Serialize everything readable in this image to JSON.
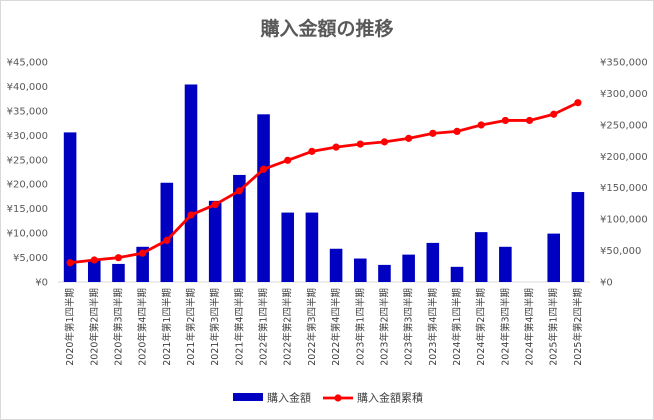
{
  "chart_data": {
    "type": "bar",
    "title": "購入金額の推移",
    "categories": [
      "2020年第1四半期",
      "2020年第2四半期",
      "2020年第3四半期",
      "2020年第4四半期",
      "2021年第1四半期",
      "2021年第2四半期",
      "2021年第3四半期",
      "2021年第4四半期",
      "2022年第1四半期",
      "2022年第2四半期",
      "2022年第3四半期",
      "2022年第4四半期",
      "2023年第1四半期",
      "2023年第2四半期",
      "2023年第3四半期",
      "2023年第4四半期",
      "2024年第1四半期",
      "2024年第2四半期",
      "2024年第3四半期",
      "2024年第4四半期",
      "2025年第1四半期",
      "2025年第2四半期"
    ],
    "series": [
      {
        "name": "購入金額",
        "kind": "bar",
        "axis": "left",
        "color": "#0000c0",
        "values": [
          30600,
          4400,
          3700,
          7200,
          20300,
          40400,
          16600,
          21900,
          34300,
          14200,
          14200,
          6800,
          4800,
          3500,
          5600,
          8000,
          3100,
          10200,
          7200,
          0,
          9900,
          18400
        ]
      },
      {
        "name": "購入金額累積",
        "kind": "line",
        "axis": "right",
        "color": "#ff0000",
        "values": [
          30600,
          35000,
          38700,
          45900,
          66200,
          106600,
          123200,
          145100,
          179400,
          193600,
          207800,
          214600,
          219400,
          222900,
          228500,
          236500,
          239600,
          249800,
          257000,
          257000,
          266900,
          285300
        ]
      }
    ],
    "yaxis_left": {
      "min": 0,
      "max": 45000,
      "step": 5000,
      "prefix": "¥"
    },
    "yaxis_right": {
      "min": 0,
      "max": 350000,
      "step": 50000,
      "prefix": "¥"
    },
    "grid": false,
    "legend": "bottom"
  }
}
